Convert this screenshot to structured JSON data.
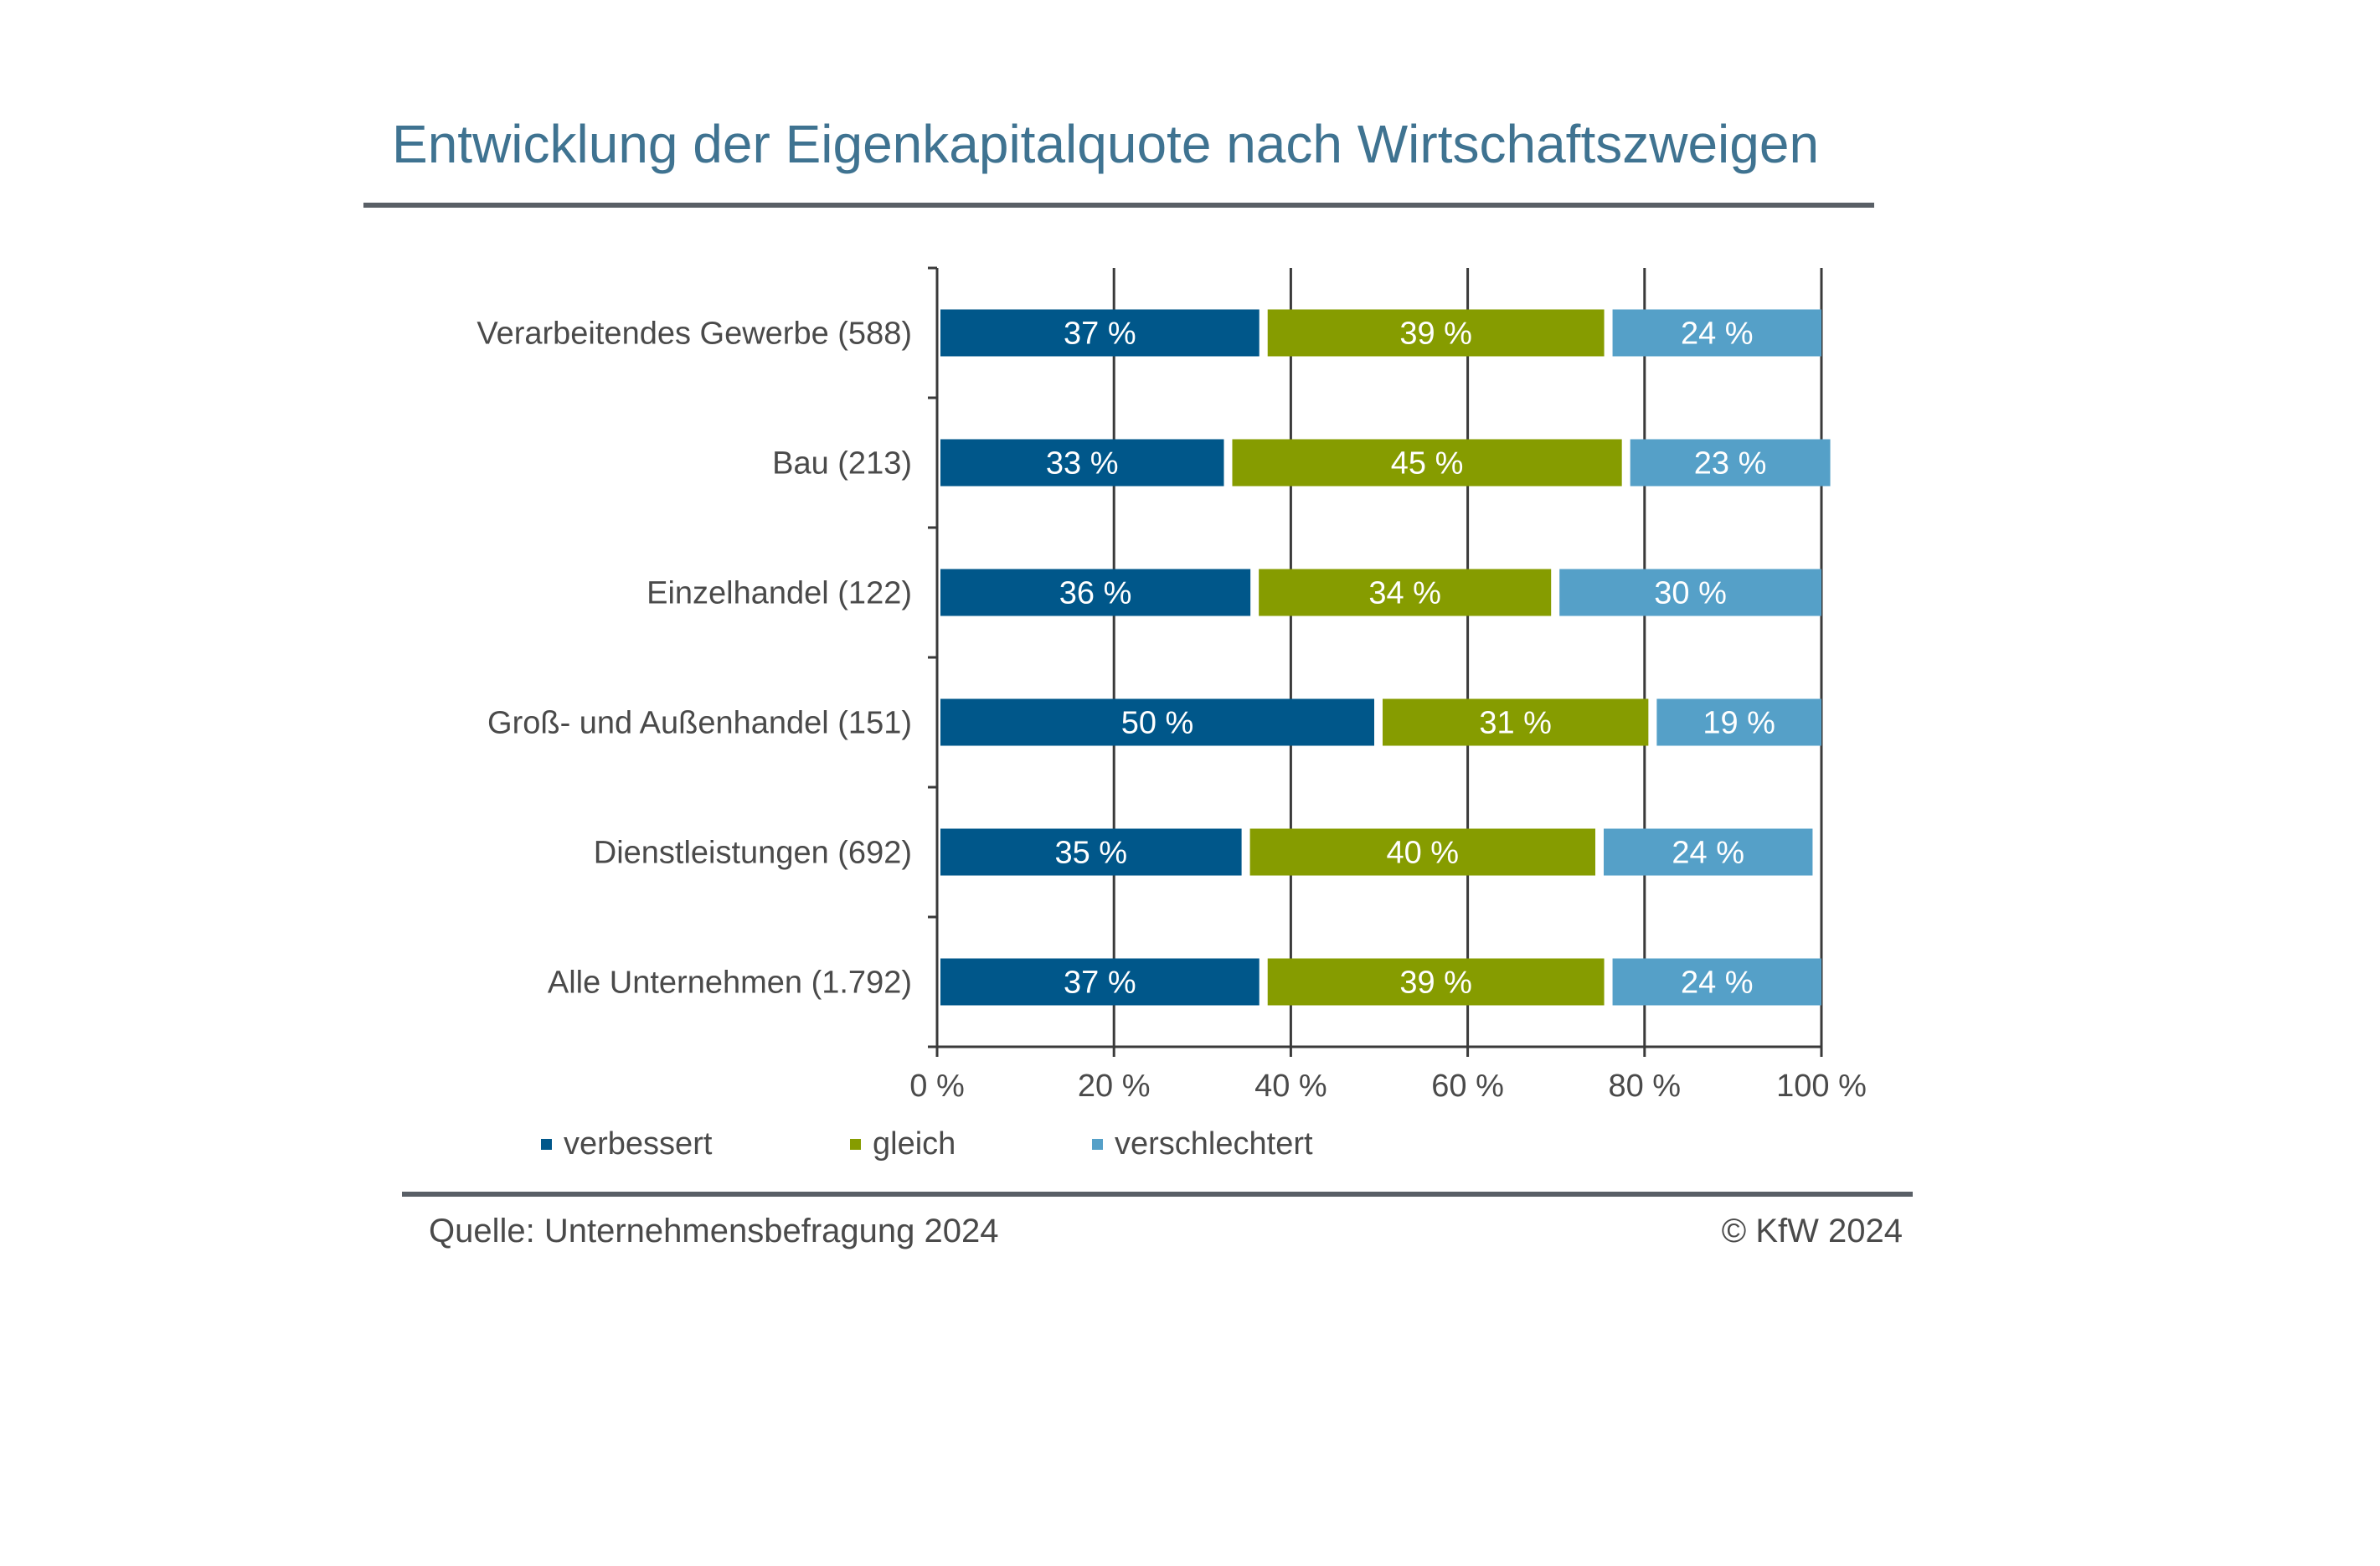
{
  "header": {
    "title": "Entwicklung der Eigenkapitalquote nach Wirtschaftszweigen"
  },
  "chart_data": {
    "type": "bar",
    "orientation": "horizontal",
    "stacked": true,
    "categories": [
      "Verarbeitendes Gewerbe (588)",
      "Bau (213)",
      "Einzelhandel (122)",
      "Groß- und Außenhandel (151)",
      "Dienstleistungen (692)",
      "Alle Unternehmen (1.792)"
    ],
    "series": [
      {
        "name": "verbessert",
        "color": "#00578a",
        "values": [
          37,
          33,
          36,
          50,
          35,
          37
        ]
      },
      {
        "name": "gleich",
        "color": "#869c00",
        "values": [
          39,
          45,
          34,
          31,
          40,
          39
        ]
      },
      {
        "name": "verschlechtert",
        "color": "#55a0c8",
        "values": [
          24,
          23,
          30,
          19,
          24,
          24
        ]
      }
    ],
    "value_suffix": " %",
    "xlim": [
      0,
      100
    ],
    "x_ticks": [
      "0 %",
      "20 %",
      "40 %",
      "60 %",
      "80 %",
      "100 %"
    ],
    "grid": "vertical",
    "legend_position": "bottom-left"
  },
  "footer": {
    "source": "Quelle: Unternehmensbefragung 2024",
    "copyright": "© KfW 2024"
  }
}
